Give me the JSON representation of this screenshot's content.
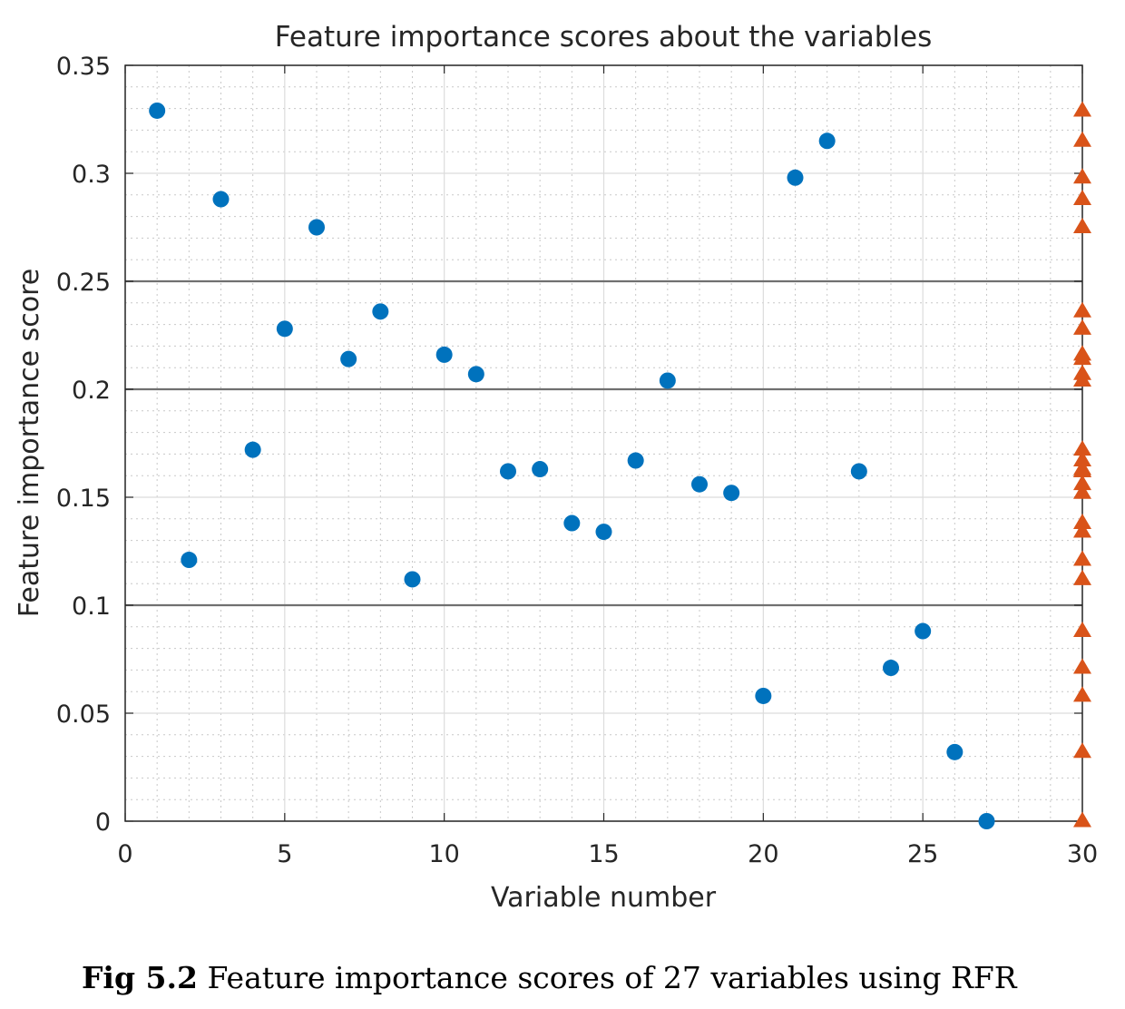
{
  "caption": {
    "figure_number": "Fig 5.2",
    "text": " Feature importance scores of 27 variables using RFR"
  },
  "chart_data": {
    "type": "scatter",
    "title": "Feature importance scores about the variables",
    "xlabel": "Variable number",
    "ylabel": "Feature importance score",
    "xlim": [
      0,
      30
    ],
    "ylim": [
      0,
      0.35
    ],
    "xticks": [
      "0",
      "5",
      "10",
      "15",
      "20",
      "25",
      "30"
    ],
    "yticks": [
      "0",
      "0.05",
      "0.1",
      "0.15",
      "0.2",
      "0.25",
      "0.3",
      "0.35"
    ],
    "grid": true,
    "minor_grid": true,
    "reference_lines_y": [
      0.1,
      0.2,
      0.25
    ],
    "series": [
      {
        "marker": "circle",
        "color": "#0072bd",
        "x": [
          1,
          2,
          3,
          4,
          5,
          6,
          7,
          8,
          9,
          10,
          11,
          12,
          13,
          14,
          15,
          16,
          17,
          18,
          19,
          20,
          21,
          22,
          23,
          24,
          25,
          26,
          27
        ],
        "y": [
          0.329,
          0.121,
          0.288,
          0.172,
          0.228,
          0.275,
          0.214,
          0.236,
          0.112,
          0.216,
          0.207,
          0.162,
          0.163,
          0.138,
          0.134,
          0.167,
          0.204,
          0.156,
          0.152,
          0.058,
          0.298,
          0.315,
          0.162,
          0.071,
          0.088,
          0.032,
          0.0
        ]
      },
      {
        "marker": "triangle",
        "color": "#d95319",
        "x": [
          30,
          30,
          30,
          30,
          30,
          30,
          30,
          30,
          30,
          30,
          30,
          30,
          30,
          30,
          30,
          30,
          30,
          30,
          30,
          30,
          30,
          30,
          30,
          30,
          30,
          30,
          30
        ],
        "y": [
          0.329,
          0.121,
          0.288,
          0.172,
          0.228,
          0.275,
          0.214,
          0.236,
          0.112,
          0.216,
          0.207,
          0.162,
          0.163,
          0.138,
          0.134,
          0.167,
          0.204,
          0.156,
          0.152,
          0.058,
          0.298,
          0.315,
          0.162,
          0.071,
          0.088,
          0.032,
          0.0
        ]
      }
    ]
  }
}
